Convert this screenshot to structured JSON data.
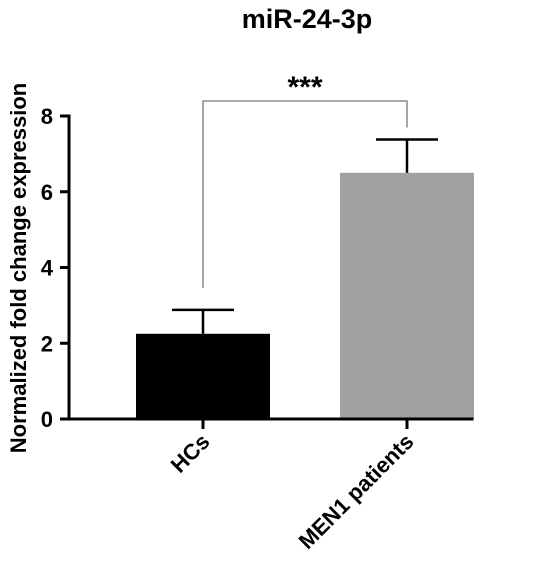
{
  "chart_data": {
    "type": "bar",
    "title": "miR-24-3p",
    "ylabel": "Normalized fold change expression",
    "xlabel": "",
    "categories": [
      "HCs",
      "MEN1 patients"
    ],
    "values": [
      2.25,
      6.5
    ],
    "error_upper": [
      2.88,
      7.38
    ],
    "colors": [
      "#000000",
      "#a0a0a3"
    ],
    "ylim": [
      0,
      8
    ],
    "yticks": [
      0,
      2,
      4,
      6,
      8
    ],
    "ytick_labels": [
      "0",
      "2",
      "4",
      "6",
      "8"
    ],
    "grid": false,
    "significance": {
      "label": "***",
      "between": [
        "HCs",
        "MEN1 patients"
      ]
    }
  }
}
